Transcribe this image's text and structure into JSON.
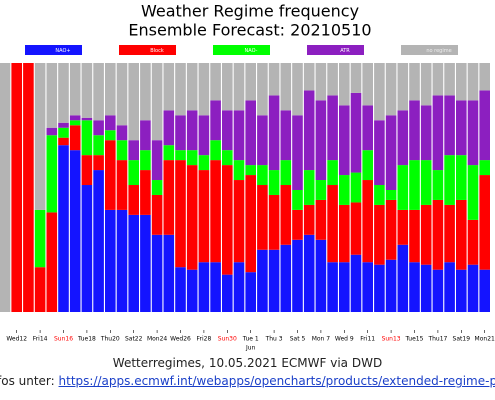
{
  "chart_data": {
    "type": "stacked_bar",
    "title": "Weather Regime frequency",
    "subtitle": "Ensemble Forecast: 20210510",
    "categories": [
      null,
      "Wed12",
      null,
      "Fri14",
      null,
      "Sun16",
      null,
      "Tue18",
      null,
      "Thu20",
      null,
      "Sat22",
      null,
      "Mon24",
      null,
      "Wed26",
      null,
      "Fri28",
      null,
      "Sun30",
      null,
      "Tue 1",
      null,
      "Thu 3",
      null,
      "Sat 5",
      null,
      "Mon 7",
      null,
      "Wed 9",
      null,
      "Fri11",
      null,
      "Sun13",
      null,
      "Tue15",
      null,
      "Thu17",
      null,
      "Sat19",
      null,
      "Mon21"
    ],
    "month_label": {
      "category": 21,
      "text": "Jun"
    },
    "highlight_label_color": "#ff0000",
    "highlighted_categories": [
      5,
      19,
      33
    ],
    "ylim": [
      0,
      100
    ],
    "series": [
      {
        "name": "NAO+",
        "color": "#1414ff",
        "values": [
          0,
          0,
          0,
          0,
          0,
          67,
          65,
          51,
          57,
          41,
          41,
          39,
          39,
          31,
          31,
          18,
          17,
          20,
          20,
          15,
          20,
          16,
          25,
          25,
          27,
          29,
          31,
          29,
          20,
          20,
          23,
          20,
          19,
          21,
          27,
          20,
          19,
          17,
          20,
          17,
          19,
          17
        ]
      },
      {
        "name": "Block",
        "color": "#ff0000",
        "values": [
          0,
          100,
          100,
          18,
          40,
          3,
          10,
          12,
          6,
          28,
          20,
          12,
          18,
          16,
          30,
          43,
          42,
          37,
          41,
          44,
          33,
          39,
          26,
          22,
          24,
          12,
          12,
          16,
          31,
          23,
          21,
          33,
          24,
          24,
          14,
          21,
          24,
          28,
          23,
          28,
          18,
          38
        ]
      },
      {
        "name": "NAO-",
        "color": "#00ff00",
        "values": [
          0,
          0,
          0,
          23,
          31,
          4,
          2,
          14,
          8,
          4,
          8,
          10,
          8,
          6,
          6,
          4,
          6,
          6,
          8,
          6,
          8,
          4,
          8,
          10,
          10,
          8,
          14,
          8,
          10,
          12,
          12,
          12,
          8,
          4,
          18,
          20,
          18,
          12,
          20,
          18,
          22,
          6
        ]
      },
      {
        "name": "ATR",
        "color": "#8c1fc0",
        "values": [
          0,
          0,
          0,
          0,
          3,
          2,
          2,
          1,
          6,
          6,
          6,
          8,
          12,
          16,
          14,
          14,
          16,
          16,
          16,
          16,
          20,
          26,
          20,
          30,
          20,
          30,
          32,
          32,
          26,
          28,
          32,
          18,
          26,
          30,
          22,
          24,
          22,
          30,
          24,
          22,
          26,
          28
        ]
      },
      {
        "name": "no regime",
        "color": "#b4b4b4",
        "values": [
          100,
          0,
          0,
          59,
          26,
          24,
          21,
          22,
          23,
          21,
          25,
          31,
          23,
          31,
          19,
          21,
          19,
          21,
          15,
          19,
          19,
          15,
          21,
          13,
          19,
          21,
          11,
          15,
          13,
          17,
          12,
          17,
          23,
          21,
          19,
          15,
          17,
          13,
          13,
          15,
          15,
          11
        ]
      }
    ],
    "caption": "Wetterregimes, 10.05.2021 ECMWF via DWD",
    "info_prefix": "fos unter:",
    "info_link": "https://apps.ecmwf.int/webapps/opencharts/products/extended-regime-proba"
  }
}
